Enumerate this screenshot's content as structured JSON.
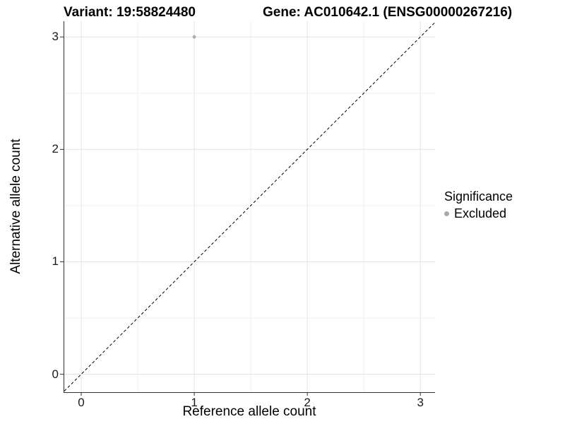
{
  "header": {
    "variant_title": "Variant: 19:58824480",
    "gene_title": "Gene: AC010642.1 (ENSG00000267216)"
  },
  "chart_data": {
    "type": "scatter",
    "xlabel": "Reference allele count",
    "ylabel": "Alternative allele count",
    "xlim": [
      -0.15,
      3.13
    ],
    "ylim": [
      -0.16,
      3.14
    ],
    "x_ticks": [
      0,
      1,
      2,
      3
    ],
    "y_ticks": [
      0,
      1,
      2,
      3
    ],
    "x_minor_ticks": [
      0.5,
      1.5,
      2.5
    ],
    "y_minor_ticks": [
      0.5,
      1.5,
      2.5
    ],
    "grid": true,
    "series": [
      {
        "name": "Excluded",
        "color": "#b0b0b0",
        "points": [
          {
            "x": 1,
            "y": 3
          }
        ]
      }
    ],
    "reference_line": {
      "kind": "identity",
      "style": "dashed",
      "color": "#000000"
    },
    "legend": {
      "title": "Significance",
      "position": "right",
      "items": [
        {
          "label": "Excluded",
          "color": "#a9a9a9"
        }
      ]
    }
  },
  "colors": {
    "background": "#ffffff",
    "grid_major": "#e4e4e4",
    "grid_minor": "#f1f1f1",
    "axis_line": "#333333",
    "tick_text": "#1a1a1a"
  }
}
